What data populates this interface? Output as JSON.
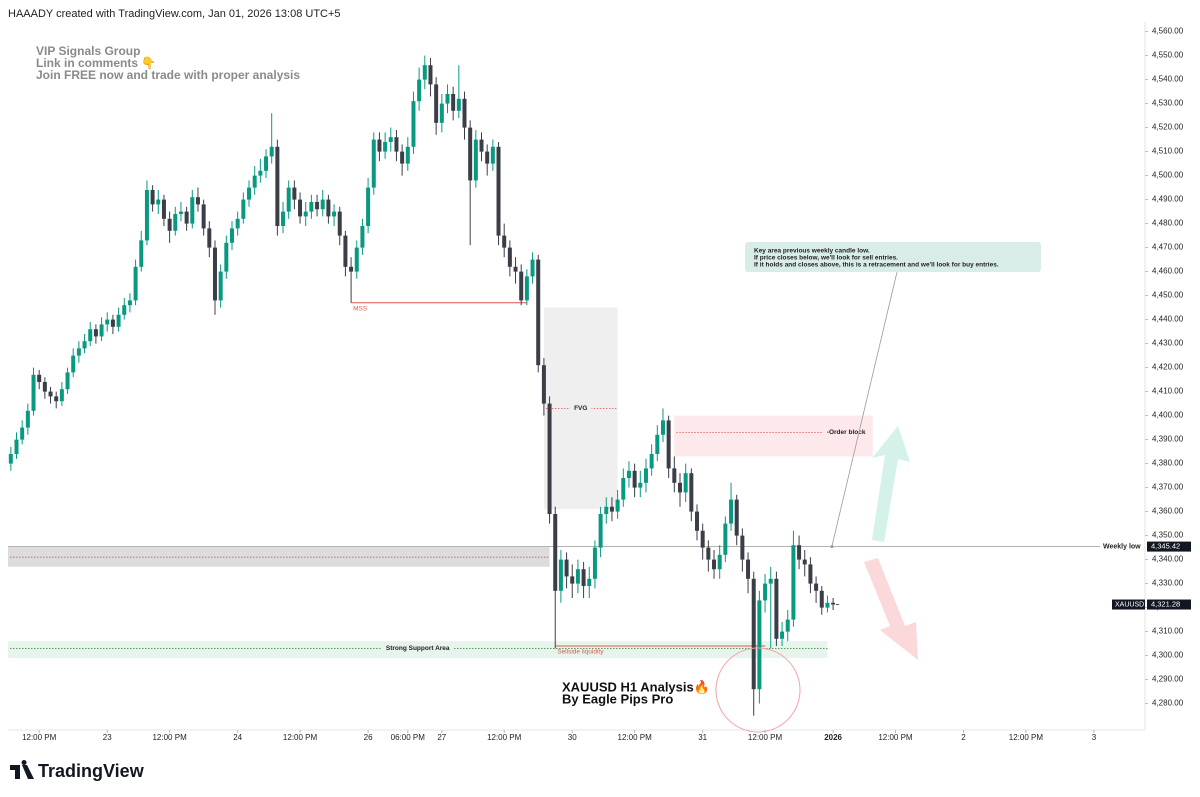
{
  "header": "HAAADY created with TradingView.com, Jan 01, 2026 13:08 UTC+5",
  "promo": [
    "VIP Signals Group",
    "Link in comments 👇",
    "Join FREE now and trade with proper analysis"
  ],
  "note": [
    "Key area previous weekly candle low.",
    "If price closes below, we'll look for sell entries.",
    "If it holds and closes above, this is a retracement and we'll look for buy entries."
  ],
  "analysis_title": [
    "XAUUSD H1 Analysis🔥",
    "By Eagle Pips Pro"
  ],
  "branding": "TradingView",
  "chart_data": {
    "type": "candlestick",
    "series": [
      {
        "name": "XAUUSD",
        "up_color": "#089981",
        "down_color": "#3b3e47",
        "open": [
          4380,
          4384,
          4390,
          4395,
          4402,
          4417,
          4414,
          4410,
          4408,
          4406,
          4411,
          4418,
          4425,
          4428,
          4431,
          4436,
          4433,
          4438,
          4440,
          4437,
          4442,
          4446,
          4448,
          4462,
          4473,
          4494,
          4488,
          4490,
          4482,
          4477,
          4484,
          4485,
          4480,
          4491,
          4488,
          4478,
          4470,
          4448,
          4460,
          4472,
          4478,
          4482,
          4490,
          4495,
          4500,
          4502,
          4508,
          4512,
          4479,
          4485,
          4495,
          4490,
          4483,
          4485,
          4489,
          4486,
          4490,
          4483,
          4485,
          4475,
          4462,
          4460,
          4470,
          4479,
          4495,
          4515,
          4510,
          4514,
          4516,
          4510,
          4505,
          4512,
          4531,
          4540,
          4546,
          4538,
          4522,
          4530,
          4534,
          4527,
          4532,
          4520,
          4498,
          4515,
          4510,
          4505,
          4512,
          4475,
          4470,
          4462,
          4460,
          4448,
          4458,
          4465,
          4421,
          4405,
          4359,
          4327,
          4340,
          4333,
          4330,
          4336,
          4329,
          4332,
          4345,
          4359,
          4362,
          4360,
          4365,
          4374,
          4377,
          4370,
          4372,
          4378,
          4384,
          4392,
          4398,
          4378,
          4372,
          4368,
          4376,
          4360,
          4352,
          4345,
          4340,
          4336,
          4342,
          4355,
          4365,
          4350,
          4340,
          4332,
          4286,
          4323,
          4330,
          4332,
          4307,
          4310,
          4315,
          4346,
          4340,
          4338,
          4330,
          4327,
          4320,
          4322
        ],
        "high": [
          4387,
          4393,
          4398,
          4405,
          4420,
          4419,
          4416,
          4412,
          4410,
          4414,
          4420,
          4428,
          4431,
          4434,
          4439,
          4438,
          4441,
          4443,
          4442,
          4445,
          4449,
          4451,
          4465,
          4477,
          4498,
          4496,
          4494,
          4492,
          4485,
          4487,
          4489,
          4487,
          4494,
          4495,
          4490,
          4481,
          4473,
          4463,
          4475,
          4481,
          4485,
          4493,
          4498,
          4504,
          4507,
          4511,
          4526,
          4515,
          4489,
          4498,
          4498,
          4493,
          4489,
          4492,
          4492,
          4494,
          4492,
          4488,
          4487,
          4477,
          4466,
          4473,
          4482,
          4499,
          4518,
          4518,
          4518,
          4520,
          4519,
          4513,
          4516,
          4535,
          4545,
          4550,
          4549,
          4541,
          4534,
          4538,
          4537,
          4546,
          4535,
          4523,
          4519,
          4518,
          4513,
          4515,
          4514,
          4480,
          4473,
          4466,
          4463,
          4461,
          4468,
          4467,
          4424,
          4408,
          4362,
          4344,
          4343,
          4338,
          4340,
          4339,
          4337,
          4348,
          4362,
          4366,
          4366,
          4369,
          4378,
          4381,
          4380,
          4377,
          4382,
          4388,
          4396,
          4403,
          4400,
          4383,
          4376,
          4380,
          4378,
          4363,
          4355,
          4348,
          4344,
          4346,
          4358,
          4372,
          4367,
          4353,
          4343,
          4335,
          4327,
          4334,
          4337,
          4335,
          4314,
          4319,
          4352,
          4350,
          4344,
          4341,
          4333,
          4329,
          4325,
          4324
        ],
        "low": [
          4377,
          4382,
          4388,
          4392,
          4400,
          4411,
          4407,
          4405,
          4403,
          4404,
          4409,
          4416,
          4422,
          4426,
          4429,
          4430,
          4431,
          4435,
          4434,
          4435,
          4440,
          4443,
          4446,
          4460,
          4471,
          4485,
          4484,
          4479,
          4472,
          4475,
          4481,
          4477,
          4478,
          4485,
          4475,
          4466,
          4442,
          4445,
          4457,
          4469,
          4475,
          4480,
          4487,
          4492,
          4497,
          4499,
          4505,
          4475,
          4476,
          4482,
          4486,
          4480,
          4479,
          4482,
          4483,
          4483,
          4480,
          4479,
          4471,
          4458,
          4447,
          4457,
          4467,
          4476,
          4492,
          4506,
          4507,
          4510,
          4506,
          4500,
          4502,
          4509,
          4527,
          4536,
          4533,
          4517,
          4518,
          4526,
          4523,
          4524,
          4515,
          4471,
          4495,
          4506,
          4500,
          4502,
          4471,
          4466,
          4458,
          4455,
          4446,
          4446,
          4455,
          4418,
          4400,
          4355,
          4303,
          4322,
          4328,
          4324,
          4326,
          4324,
          4324,
          4328,
          4341,
          4355,
          4356,
          4357,
          4362,
          4370,
          4366,
          4366,
          4368,
          4375,
          4381,
          4389,
          4374,
          4368,
          4362,
          4364,
          4356,
          4348,
          4340,
          4335,
          4332,
          4332,
          4339,
          4352,
          4346,
          4335,
          4326,
          4275,
          4280,
          4318,
          4303,
          4304,
          4304,
          4306,
          4312,
          4336,
          4333,
          4326,
          4322,
          4317,
          4318,
          4319
        ],
        "close": [
          4384,
          4390,
          4395,
          4402,
          4417,
          4414,
          4410,
          4408,
          4406,
          4411,
          4418,
          4425,
          4428,
          4431,
          4436,
          4433,
          4438,
          4440,
          4437,
          4442,
          4446,
          4448,
          4462,
          4473,
          4494,
          4488,
          4490,
          4482,
          4477,
          4484,
          4485,
          4480,
          4491,
          4488,
          4478,
          4470,
          4448,
          4460,
          4472,
          4478,
          4482,
          4490,
          4495,
          4500,
          4502,
          4508,
          4512,
          4479,
          4485,
          4495,
          4490,
          4483,
          4485,
          4489,
          4486,
          4490,
          4483,
          4485,
          4475,
          4462,
          4460,
          4470,
          4479,
          4495,
          4515,
          4510,
          4514,
          4516,
          4510,
          4505,
          4512,
          4531,
          4540,
          4546,
          4538,
          4522,
          4530,
          4534,
          4527,
          4532,
          4520,
          4498,
          4515,
          4510,
          4505,
          4512,
          4475,
          4470,
          4462,
          4460,
          4448,
          4458,
          4465,
          4421,
          4405,
          4359,
          4327,
          4340,
          4333,
          4330,
          4336,
          4329,
          4332,
          4345,
          4359,
          4362,
          4360,
          4365,
          4374,
          4377,
          4370,
          4372,
          4378,
          4384,
          4392,
          4398,
          4378,
          4372,
          4368,
          4376,
          4360,
          4352,
          4345,
          4340,
          4336,
          4342,
          4355,
          4365,
          4350,
          4340,
          4332,
          4286,
          4323,
          4330,
          4332,
          4307,
          4310,
          4315,
          4346,
          4340,
          4338,
          4330,
          4327,
          4320,
          4322,
          4321.28
        ],
        "last_label": "4,321.28"
      }
    ],
    "xlim": [
      -0.5,
      200
    ],
    "xticks": [
      {
        "value": 5,
        "label": "12:00 PM"
      },
      {
        "value": 17,
        "label": "23"
      },
      {
        "value": 28,
        "label": "12:00 PM"
      },
      {
        "value": 40,
        "label": "24"
      },
      {
        "value": 51,
        "label": "12:00 PM"
      },
      {
        "value": 63,
        "label": "26"
      },
      {
        "value": 70,
        "label": "06:00 PM"
      },
      {
        "value": 76,
        "label": "27"
      },
      {
        "value": 87,
        "label": "12:00 PM"
      },
      {
        "value": 99,
        "label": "30"
      },
      {
        "value": 110,
        "label": "12:00 PM"
      },
      {
        "value": 122,
        "label": "31"
      },
      {
        "value": 133,
        "label": "12:00 PM"
      },
      {
        "value": 145,
        "label": "2026"
      },
      {
        "value": 156,
        "label": "12:00 PM"
      },
      {
        "value": 168,
        "label": "2"
      },
      {
        "value": 179,
        "label": "12:00 PM"
      },
      {
        "value": 191,
        "label": "3"
      }
    ],
    "ylim": [
      4269,
      4564
    ],
    "yticks": [
      {
        "value": 4280,
        "label": "4,280.00"
      },
      {
        "value": 4290,
        "label": "4,290.00"
      },
      {
        "value": 4300,
        "label": "4,300.00"
      },
      {
        "value": 4310,
        "label": "4,310.00"
      },
      {
        "value": 4320,
        "label": "4,320.00"
      },
      {
        "value": 4330,
        "label": "4,330.00"
      },
      {
        "value": 4340,
        "label": "4,340.00"
      },
      {
        "value": 4350,
        "label": "4,350.00"
      },
      {
        "value": 4360,
        "label": "4,360.00"
      },
      {
        "value": 4370,
        "label": "4,370.00"
      },
      {
        "value": 4380,
        "label": "4,380.00"
      },
      {
        "value": 4390,
        "label": "4,390.00"
      },
      {
        "value": 4400,
        "label": "4,400.00"
      },
      {
        "value": 4410,
        "label": "4,410.00"
      },
      {
        "value": 4420,
        "label": "4,420.00"
      },
      {
        "value": 4430,
        "label": "4,430.00"
      },
      {
        "value": 4440,
        "label": "4,440.00"
      },
      {
        "value": 4450,
        "label": "4,450.00"
      },
      {
        "value": 4460,
        "label": "4,460.00"
      },
      {
        "value": 4470,
        "label": "4,470.00"
      },
      {
        "value": 4480,
        "label": "4,480.00"
      },
      {
        "value": 4490,
        "label": "4,490.00"
      },
      {
        "value": 4500,
        "label": "4,500.00"
      },
      {
        "value": 4510,
        "label": "4,510.00"
      },
      {
        "value": 4520,
        "label": "4,520.00"
      },
      {
        "value": 4530,
        "label": "4,530.00"
      },
      {
        "value": 4540,
        "label": "4,540.00"
      },
      {
        "value": 4550,
        "label": "4,550.00"
      },
      {
        "value": 4560,
        "label": "4,560.00"
      }
    ],
    "level": {
      "label": "Weekly low",
      "value": 4345.42,
      "value_label": "4,345.42",
      "color": "#9a9a9a"
    },
    "zones": [
      {
        "x": [
          -0.5,
          95
        ],
        "y": [
          4337,
          4345.42
        ],
        "color": "#dcdcdc",
        "line": 4341,
        "line_color": "#d9534f"
      },
      {
        "label": "FVG",
        "x": [
          94,
          107
        ],
        "y": [
          4361,
          4445
        ],
        "color": "#efefef",
        "line": 4403,
        "line_color": "#d9534f",
        "label_position": "center"
      },
      {
        "label": "-Order block",
        "x": [
          117,
          152
        ],
        "y": [
          4383,
          4400
        ],
        "color": "#fde9eb",
        "line": 4393,
        "line_color": "#d9534f",
        "label_position": "end"
      },
      {
        "label": "Strong Support Area",
        "x": [
          -0.5,
          144
        ],
        "y": [
          4299,
          4306
        ],
        "color": "#e7f4ec",
        "line": 4303,
        "line_color": "#2e7d32",
        "label_position": "center"
      }
    ],
    "segments": [
      {
        "label": "MSS",
        "x": [
          60,
          91
        ],
        "y": 4447,
        "color": "#e05555"
      },
      {
        "label": "Sellside liquidity",
        "x": [
          96,
          133
        ],
        "y": 4304,
        "color": "#e05555"
      }
    ]
  }
}
